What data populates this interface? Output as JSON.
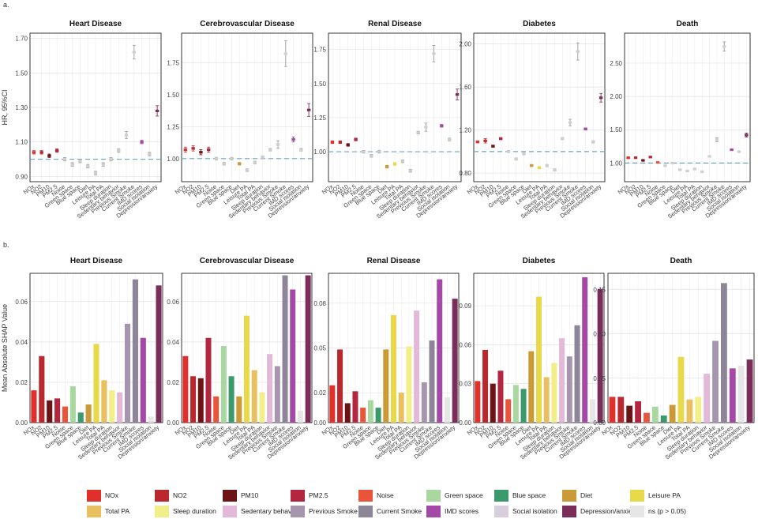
{
  "panel_labels": [
    "a.",
    "b."
  ],
  "legend_title": "",
  "categories": [
    "NOx",
    "NO2",
    "PM10",
    "PM2.5",
    "Noise",
    "Green space",
    "Blue space",
    "Diet",
    "Leisure PA",
    "Total PA",
    "Sleep duration",
    "Sedentary behavior",
    "Previous Smoke",
    "Current Smoke",
    "IMD scores",
    "Social isolation",
    "Depression/anxiety"
  ],
  "colors": [
    "#e0302b",
    "#b8282c",
    "#6e1315",
    "#b2263f",
    "#e8553a",
    "#a8d8a0",
    "#3a9a6a",
    "#c99a35",
    "#e8d94a",
    "#e8c060",
    "#f2ee8a",
    "#e3b8d8",
    "#a596ad",
    "#8f8599",
    "#a44aa6",
    "#d8cfdc",
    "#7b2d5a"
  ],
  "ns_label": "ns (p > 0.05)",
  "ns_color": "#e6e6e6",
  "chart_data": [
    {
      "type": "scatter",
      "group": "a",
      "title": "Heart Disease",
      "ylabel": "HR, 95%CI",
      "yticks": [
        0.9,
        1.1,
        1.3,
        1.5,
        1.7
      ],
      "ytick_labels": [
        "0.90",
        "1.10",
        "1.30",
        "1.50",
        "1.70"
      ],
      "ylim": [
        0.87,
        1.73
      ],
      "reference_line": 1.0,
      "hr": [
        1.04,
        1.04,
        1.02,
        1.05,
        1.0,
        0.97,
        0.99,
        0.96,
        0.92,
        0.97,
        1.0,
        1.05,
        1.14,
        1.62,
        1.1,
        1.03,
        1.28
      ],
      "lo": [
        1.03,
        1.03,
        1.01,
        1.04,
        0.99,
        0.96,
        0.98,
        0.95,
        0.91,
        0.96,
        0.99,
        1.04,
        1.12,
        1.58,
        1.09,
        1.02,
        1.25
      ],
      "hi": [
        1.05,
        1.05,
        1.03,
        1.06,
        1.01,
        0.98,
        1.0,
        0.97,
        0.93,
        0.98,
        1.01,
        1.06,
        1.16,
        1.66,
        1.11,
        1.04,
        1.31
      ],
      "ns": [
        false,
        false,
        false,
        false,
        true,
        true,
        true,
        true,
        true,
        true,
        true,
        true,
        true,
        true,
        false,
        true,
        false
      ]
    },
    {
      "type": "scatter",
      "group": "a",
      "title": "Cerebrovascular Disease",
      "ylabel": "",
      "yticks": [
        1.0,
        1.25,
        1.5,
        1.75
      ],
      "ytick_labels": [
        "1.00",
        "1.25",
        "1.50",
        "1.75"
      ],
      "ylim": [
        0.82,
        1.98
      ],
      "reference_line": 1.0,
      "hr": [
        1.07,
        1.08,
        1.05,
        1.07,
        1.0,
        0.96,
        1.0,
        0.96,
        0.91,
        0.97,
        1.01,
        1.07,
        1.11,
        1.82,
        1.15,
        1.07,
        1.38
      ],
      "lo": [
        1.05,
        1.06,
        1.03,
        1.05,
        0.99,
        0.95,
        0.99,
        0.95,
        0.9,
        0.96,
        1.0,
        1.06,
        1.08,
        1.72,
        1.13,
        1.06,
        1.33
      ],
      "hi": [
        1.09,
        1.1,
        1.07,
        1.09,
        1.01,
        0.97,
        1.01,
        0.97,
        0.92,
        0.98,
        1.02,
        1.08,
        1.14,
        1.92,
        1.17,
        1.08,
        1.43
      ],
      "ns": [
        false,
        false,
        false,
        false,
        true,
        true,
        true,
        false,
        true,
        true,
        true,
        true,
        true,
        true,
        false,
        true,
        false
      ]
    },
    {
      "type": "scatter",
      "group": "a",
      "title": "Renal Disease",
      "ylabel": "",
      "yticks": [
        1.0,
        1.25,
        1.5,
        1.75
      ],
      "ytick_labels": [
        "1.00",
        "1.25",
        "1.50",
        "1.75"
      ],
      "ylim": [
        0.78,
        1.87
      ],
      "reference_line": 1.0,
      "hr": [
        1.07,
        1.07,
        1.05,
        1.09,
        1.0,
        0.97,
        1.0,
        0.89,
        0.91,
        0.93,
        0.86,
        1.14,
        1.18,
        1.72,
        1.19,
        1.09,
        1.42
      ],
      "lo": [
        1.06,
        1.06,
        1.04,
        1.08,
        0.99,
        0.96,
        0.99,
        0.88,
        0.9,
        0.92,
        0.85,
        1.13,
        1.15,
        1.66,
        1.18,
        1.08,
        1.38
      ],
      "hi": [
        1.08,
        1.08,
        1.06,
        1.1,
        1.01,
        0.98,
        1.01,
        0.9,
        0.92,
        0.94,
        0.87,
        1.15,
        1.21,
        1.78,
        1.2,
        1.1,
        1.46
      ],
      "ns": [
        false,
        false,
        false,
        false,
        true,
        true,
        true,
        false,
        false,
        true,
        true,
        true,
        true,
        true,
        false,
        true,
        false
      ]
    },
    {
      "type": "scatter",
      "group": "a",
      "title": "Diabetes",
      "ylabel": "",
      "yticks": [
        0.8,
        1.2,
        1.6,
        2.0
      ],
      "ytick_labels": [
        "0.80",
        "1.20",
        "1.60",
        "2.00"
      ],
      "ylim": [
        0.72,
        2.1
      ],
      "reference_line": 1.0,
      "hr": [
        1.09,
        1.1,
        1.05,
        1.12,
        1.0,
        0.93,
        0.98,
        0.87,
        0.85,
        0.87,
        0.83,
        1.12,
        1.27,
        1.93,
        1.21,
        1.09,
        1.5
      ],
      "lo": [
        1.08,
        1.08,
        1.04,
        1.11,
        0.99,
        0.92,
        0.97,
        0.86,
        0.84,
        0.86,
        0.82,
        1.11,
        1.24,
        1.85,
        1.2,
        1.08,
        1.46
      ],
      "hi": [
        1.1,
        1.12,
        1.06,
        1.13,
        1.01,
        0.94,
        0.99,
        0.88,
        0.86,
        0.88,
        0.84,
        1.13,
        1.3,
        2.01,
        1.22,
        1.1,
        1.54
      ],
      "ns": [
        false,
        false,
        false,
        false,
        true,
        true,
        true,
        false,
        false,
        true,
        true,
        true,
        true,
        true,
        false,
        true,
        false
      ]
    },
    {
      "type": "scatter",
      "group": "a",
      "title": "Death",
      "ylabel": "",
      "yticks": [
        1.0,
        1.5,
        2.0,
        2.5
      ],
      "ytick_labels": [
        "1.00",
        "1.50",
        "2.00",
        "2.50"
      ],
      "ylim": [
        0.72,
        2.95
      ],
      "reference_line": 1.0,
      "hr": [
        1.08,
        1.08,
        1.04,
        1.09,
        1.01,
        0.96,
        1.0,
        0.9,
        0.88,
        0.91,
        0.87,
        1.1,
        1.35,
        2.75,
        1.2,
        1.17,
        1.42
      ],
      "lo": [
        1.07,
        1.07,
        1.03,
        1.08,
        1.0,
        0.95,
        0.99,
        0.89,
        0.87,
        0.9,
        0.86,
        1.09,
        1.32,
        2.68,
        1.19,
        1.16,
        1.39
      ],
      "hi": [
        1.09,
        1.09,
        1.05,
        1.1,
        1.02,
        0.97,
        1.01,
        0.91,
        0.89,
        0.92,
        0.88,
        1.11,
        1.38,
        2.82,
        1.21,
        1.18,
        1.45
      ],
      "ns": [
        false,
        false,
        false,
        false,
        false,
        true,
        true,
        true,
        true,
        true,
        true,
        true,
        true,
        true,
        false,
        true,
        false
      ]
    },
    {
      "type": "bar",
      "group": "b",
      "title": "Heart Disease",
      "ylabel": "Mean Absolute SHAP Value",
      "yticks": [
        0,
        0.02,
        0.04,
        0.06
      ],
      "ytick_labels": [
        "0.00",
        "0.02",
        "0.04",
        "0.06"
      ],
      "ylim": [
        0,
        0.074
      ],
      "values": [
        0.016,
        0.033,
        0.011,
        0.012,
        0.008,
        0.018,
        0.005,
        0.009,
        0.039,
        0.021,
        0.016,
        0.015,
        0.049,
        0.071,
        0.042,
        0.003,
        0.068
      ],
      "ns": [
        false,
        false,
        false,
        false,
        false,
        false,
        false,
        false,
        false,
        false,
        false,
        false,
        false,
        false,
        false,
        true,
        false
      ]
    },
    {
      "type": "bar",
      "group": "b",
      "title": "Cerebrovascular Disease",
      "ylabel": "",
      "yticks": [
        0,
        0.02,
        0.04,
        0.06
      ],
      "ytick_labels": [
        "0.00",
        "0.02",
        "0.04",
        "0.06"
      ],
      "ylim": [
        0,
        0.074
      ],
      "values": [
        0.033,
        0.023,
        0.022,
        0.042,
        0.013,
        0.038,
        0.023,
        0.013,
        0.053,
        0.026,
        0.015,
        0.034,
        0.028,
        0.073,
        0.066,
        0.006,
        0.073
      ],
      "ns": [
        false,
        false,
        false,
        false,
        false,
        false,
        false,
        false,
        false,
        false,
        false,
        false,
        false,
        false,
        false,
        true,
        false
      ]
    },
    {
      "type": "bar",
      "group": "b",
      "title": "Renal Disease",
      "ylabel": "",
      "yticks": [
        0,
        0.02,
        0.05,
        0.08
      ],
      "ytick_labels": [
        "0.00",
        "0.02",
        "0.05",
        "0.08"
      ],
      "ylim": [
        0,
        0.1
      ],
      "values": [
        0.025,
        0.049,
        0.013,
        0.021,
        0.01,
        0.015,
        0.01,
        0.049,
        0.072,
        0.02,
        0.051,
        0.075,
        0.027,
        0.055,
        0.096,
        0.017,
        0.083
      ],
      "ns": [
        false,
        false,
        false,
        false,
        false,
        false,
        false,
        false,
        false,
        false,
        false,
        false,
        false,
        false,
        false,
        true,
        false
      ]
    },
    {
      "type": "bar",
      "group": "b",
      "title": "Diabetes",
      "ylabel": "",
      "yticks": [
        0,
        0.03,
        0.06,
        0.09
      ],
      "ytick_labels": [
        "0.00",
        "0.03",
        "0.06",
        "0.09"
      ],
      "ylim": [
        0,
        0.115
      ],
      "values": [
        0.032,
        0.056,
        0.03,
        0.04,
        0.018,
        0.029,
        0.026,
        0.055,
        0.097,
        0.035,
        0.046,
        0.065,
        0.051,
        0.075,
        0.112,
        0.018,
        0.103
      ],
      "ns": [
        false,
        false,
        false,
        false,
        false,
        false,
        false,
        false,
        false,
        false,
        false,
        false,
        false,
        false,
        false,
        true,
        false
      ]
    },
    {
      "type": "bar",
      "group": "b",
      "title": "Death",
      "ylabel": "",
      "yticks": [
        0,
        0.05,
        0.1,
        0.15
      ],
      "ytick_labels": [
        "0.00",
        "0.05",
        "0.10",
        "0.15"
      ],
      "ylim": [
        0,
        0.168
      ],
      "values": [
        0.029,
        0.029,
        0.019,
        0.024,
        0.011,
        0.018,
        0.008,
        0.02,
        0.074,
        0.026,
        0.029,
        0.055,
        0.092,
        0.157,
        0.061,
        0.064,
        0.071
      ],
      "ns": [
        false,
        false,
        false,
        false,
        false,
        false,
        false,
        false,
        false,
        false,
        false,
        false,
        false,
        false,
        false,
        true,
        false
      ]
    }
  ]
}
